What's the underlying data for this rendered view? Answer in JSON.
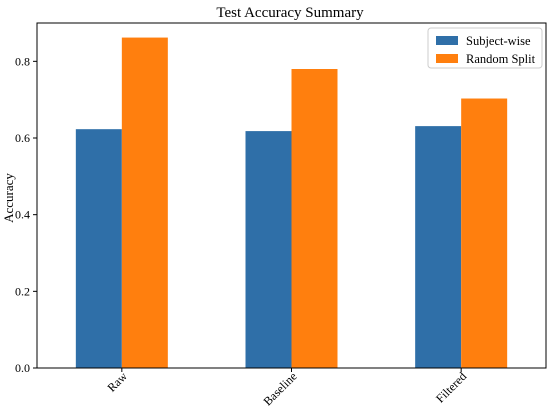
{
  "chart_data": {
    "type": "bar",
    "title": "Test Accuracy Summary",
    "xlabel": "",
    "ylabel": "Accuracy",
    "categories": [
      "Raw",
      "Baseline",
      "Filtered"
    ],
    "series": [
      {
        "name": "Subject-wise",
        "values": [
          0.623,
          0.618,
          0.631
        ],
        "color": "#2f6fa8"
      },
      {
        "name": "Random Split",
        "values": [
          0.862,
          0.78,
          0.703
        ],
        "color": "#ff7f0e"
      }
    ],
    "ylim": [
      0,
      0.9
    ],
    "yticks": [
      "0.0",
      "0.2",
      "0.4",
      "0.6",
      "0.8"
    ],
    "legend_position": "top-right",
    "grid": false
  }
}
